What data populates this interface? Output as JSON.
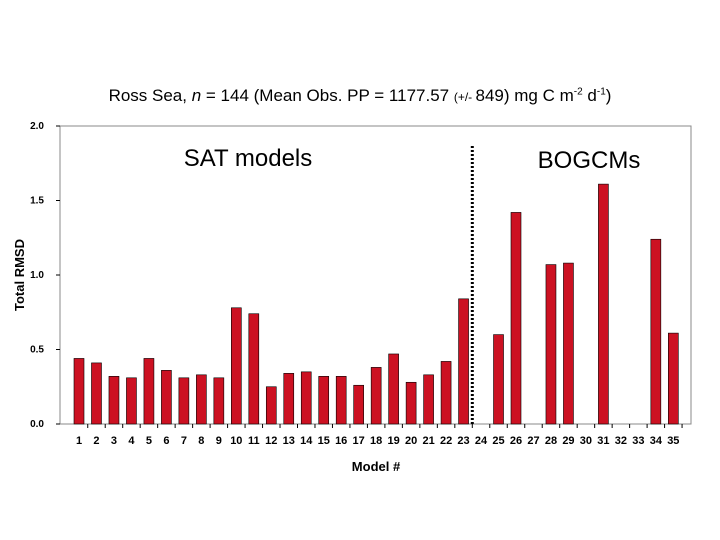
{
  "title": {
    "part1": "Ross Sea, ",
    "n_italic": "n",
    "part2": " = 144 (Mean Obs. PP = 1177.57 ",
    "paren_small": "(+/- ",
    "part3": "849) mg C m",
    "sup1": "-2",
    "part4": " d",
    "sup2": "-1",
    "part5": ")"
  },
  "chart_data": {
    "type": "bar",
    "xlabel": "Model #",
    "ylabel": "Total RMSD",
    "ylim": [
      0,
      2.0
    ],
    "yticks": [
      "0.0",
      "0.5",
      "1.0",
      "1.5",
      "2.0"
    ],
    "categories": [
      "1",
      "2",
      "3",
      "4",
      "5",
      "6",
      "7",
      "8",
      "9",
      "10",
      "11",
      "12",
      "13",
      "14",
      "15",
      "16",
      "17",
      "18",
      "19",
      "20",
      "21",
      "22",
      "23",
      "24",
      "25",
      "26",
      "27",
      "28",
      "29",
      "30",
      "31",
      "32",
      "33",
      "34",
      "35"
    ],
    "values": [
      0.44,
      0.41,
      0.32,
      0.31,
      0.44,
      0.36,
      0.31,
      0.33,
      0.31,
      0.78,
      0.74,
      0.25,
      0.34,
      0.35,
      0.32,
      0.32,
      0.26,
      0.38,
      0.47,
      0.28,
      0.33,
      0.42,
      0.84,
      null,
      0.6,
      1.42,
      null,
      1.07,
      1.08,
      null,
      1.61,
      null,
      null,
      1.24,
      0.61
    ],
    "bar_color": "#cc1122",
    "group_labels": [
      "SAT models",
      "BOGCMs"
    ],
    "divider_after": "23",
    "grid": false
  }
}
